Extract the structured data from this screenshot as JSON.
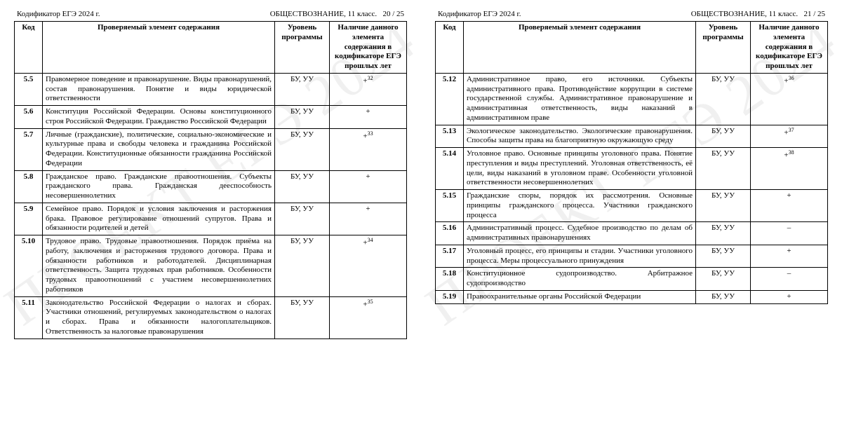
{
  "watermark": "ПРОЕКТ ЕГЭ 2024",
  "doc_title_left": "Кодификатор ЕГЭ 2024 г.",
  "doc_title_right_subject": "ОБЩЕСТВОЗНАНИЕ, 11 класс.",
  "headers": {
    "code": "Код",
    "content": "Проверяемый элемент содержания",
    "level": "Уровень программы",
    "presence": "Наличие данного элемента содержания в кодификаторе ЕГЭ прошлых лет"
  },
  "pages": [
    {
      "page_num": "20 / 25",
      "rows": [
        {
          "code": "5.5",
          "content": "Правомерное поведение и правонарушение. Виды правонарушений, состав правонарушения. Понятие и виды юридической ответственности",
          "level": "БУ, УУ",
          "presence": "+",
          "sup": "32"
        },
        {
          "code": "5.6",
          "content": "Конституция Российской Федерации. Основы конституционного строя Российской Федерации. Гражданство Российской Федерации",
          "level": "БУ, УУ",
          "presence": "+",
          "sup": ""
        },
        {
          "code": "5.7",
          "content": "Личные (гражданские), политические, социально-экономические и культурные права и свободы человека и гражданина Российской Федерации. Конституционные обязанности гражданина Российской Федерации",
          "level": "БУ, УУ",
          "presence": "+",
          "sup": "33"
        },
        {
          "code": "5.8",
          "content": "Гражданское право. Гражданские правоотношения. Субъекты гражданского права. Гражданская дееспособность несовершеннолетних",
          "level": "БУ, УУ",
          "presence": "+",
          "sup": ""
        },
        {
          "code": "5.9",
          "content": "Семейное право. Порядок и условия заключения и расторжения брака. Правовое регулирование отношений супругов. Права и обязанности родителей и детей",
          "level": "БУ, УУ",
          "presence": "+",
          "sup": ""
        },
        {
          "code": "5.10",
          "content": "Трудовое право. Трудовые правоотношения. Порядок приёма на работу, заключения и расторжения трудового договора. Права и обязанности работников и работодателей. Дисциплинарная ответственность. Защита трудовых прав работников. Особенности трудовых правоотношений с участием несовершеннолетних работников",
          "level": "БУ, УУ",
          "presence": "+",
          "sup": "34"
        },
        {
          "code": "5.11",
          "content": "Законодательство Российской Федерации о налогах и сборах. Участники отношений, регулируемых законодательством о налогах и сборах. Права и обязанности налогоплательщиков. Ответственность за налоговые правонарушения",
          "level": "БУ, УУ",
          "presence": "+",
          "sup": "35"
        }
      ]
    },
    {
      "page_num": "21 / 25",
      "rows": [
        {
          "code": "5.12",
          "content": "Административное право, его источники. Субъекты административного права. Противодействие коррупции в системе государственной службы. Административное правонарушение и административная ответственность, виды наказаний в административном праве",
          "level": "БУ, УУ",
          "presence": "+",
          "sup": "36"
        },
        {
          "code": "5.13",
          "content": "Экологическое законодательство. Экологические правонарушения. Способы защиты права на благоприятную окружающую среду",
          "level": "БУ, УУ",
          "presence": "+",
          "sup": "37"
        },
        {
          "code": "5.14",
          "content": "Уголовное право. Основные принципы уголовного права. Понятие преступления и виды преступлений. Уголовная ответственность, её цели, виды наказаний в уголовном праве. Особенности уголовной ответственности несовершеннолетних",
          "level": "БУ, УУ",
          "presence": "+",
          "sup": "38"
        },
        {
          "code": "5.15",
          "content": "Гражданские споры, порядок их рассмотрения. Основные принципы гражданского процесса. Участники гражданского процесса",
          "level": "БУ, УУ",
          "presence": "+",
          "sup": ""
        },
        {
          "code": "5.16",
          "content": "Административный процесс. Судебное производство по делам об административных правонарушениях",
          "level": "БУ, УУ",
          "presence": "–",
          "sup": ""
        },
        {
          "code": "5.17",
          "content": "Уголовный процесс, его принципы и стадии. Участники уголовного процесса. Меры процессуального принуждения",
          "level": "БУ, УУ",
          "presence": "+",
          "sup": ""
        },
        {
          "code": "5.18",
          "content": "Конституционное судопроизводство. Арбитражное судопроизводство",
          "level": "БУ, УУ",
          "presence": "–",
          "sup": ""
        },
        {
          "code": "5.19",
          "content": "Правоохранительные органы Российской Федерации",
          "level": "БУ, УУ",
          "presence": "+",
          "sup": ""
        }
      ]
    }
  ]
}
